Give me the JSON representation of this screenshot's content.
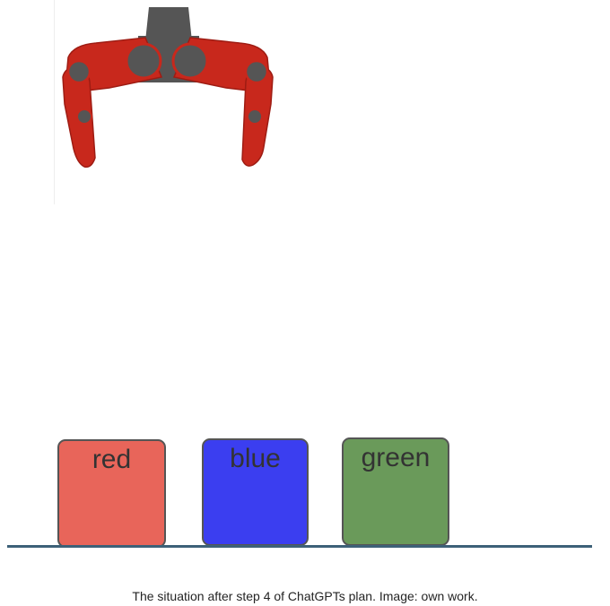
{
  "scene": {
    "blocks": [
      {
        "label": "red",
        "color": "#e8655a"
      },
      {
        "label": "blue",
        "color": "#3b3ef0"
      },
      {
        "label": "green",
        "color": "#6a9a5a"
      }
    ],
    "gripper_color": "#c8281c",
    "gripper_joint_color": "#555555",
    "ground_color": "#3d6178"
  },
  "caption": "The situation after step 4 of ChatGPTs plan. Image: own work."
}
